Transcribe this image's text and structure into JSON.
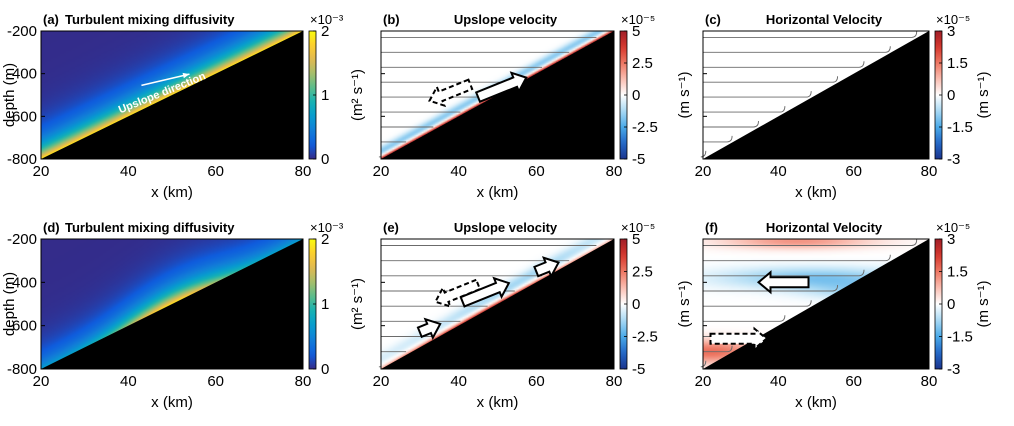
{
  "panels": [
    {
      "id": "a",
      "label": "(a)",
      "title": "Turbulent mixing diffusivity",
      "field": "kappa",
      "xlabel": "x (km)",
      "ylabel": "depth (m)",
      "xticks": [
        "20",
        "40",
        "60",
        "80"
      ],
      "yticks": [
        "-200",
        "-400",
        "-600",
        "-800"
      ],
      "show_ytick_labels": true,
      "colorbar": {
        "exponent": "×10⁻³",
        "ticks": [
          "2",
          "1",
          "0"
        ],
        "label": "(m² s⁻¹)",
        "colormap": "parula",
        "range": [
          0,
          0.002
        ]
      },
      "annotation": {
        "text": "Upslope direction"
      },
      "arrows": []
    },
    {
      "id": "b",
      "label": "(b)",
      "title": "Upslope velocity",
      "field": "upslope",
      "xlabel": "x (km)",
      "xticks": [
        "20",
        "40",
        "60",
        "80"
      ],
      "show_ytick_labels": false,
      "colorbar": {
        "exponent": "×10⁻⁵",
        "ticks": [
          "5",
          "2.5",
          "0",
          "-2.5",
          "-5"
        ],
        "label": "",
        "colormap": "diverging",
        "range": [
          -5e-05,
          5e-05
        ]
      },
      "arrows": [
        {
          "style": "dashed",
          "direction": "downslope"
        },
        {
          "style": "solid",
          "direction": "upslope"
        }
      ]
    },
    {
      "id": "c",
      "label": "(c)",
      "title": "Horizontal Velocity",
      "field": "horizontal",
      "xlabel": "x (km)",
      "ylabel": "(m s⁻¹)",
      "xticks": [
        "20",
        "40",
        "60",
        "80"
      ],
      "show_ytick_labels": false,
      "colorbar": {
        "exponent": "×10⁻⁵",
        "ticks": [
          "3",
          "1.5",
          "0",
          "-1.5",
          "-3"
        ],
        "label": "(m s⁻¹)",
        "colormap": "diverging",
        "range": [
          -3e-05,
          3e-05
        ]
      },
      "arrows": []
    },
    {
      "id": "d",
      "label": "(d)",
      "title": "Turbulent mixing diffusivity",
      "field": "kappa2",
      "xlabel": "x (km)",
      "ylabel": "depth (m)",
      "xticks": [
        "20",
        "40",
        "60",
        "80"
      ],
      "yticks": [
        "-200",
        "-400",
        "-600",
        "-800"
      ],
      "show_ytick_labels": true,
      "colorbar": {
        "exponent": "×10⁻³",
        "ticks": [
          "2",
          "1",
          "0"
        ],
        "label": "(m² s⁻¹)",
        "colormap": "parula",
        "range": [
          0,
          0.002
        ]
      },
      "arrows": []
    },
    {
      "id": "e",
      "label": "(e)",
      "title": "Upslope velocity",
      "field": "upslope2",
      "xlabel": "x (km)",
      "xticks": [
        "20",
        "40",
        "60",
        "80"
      ],
      "show_ytick_labels": false,
      "colorbar": {
        "exponent": "×10⁻⁵",
        "ticks": [
          "5",
          "2.5",
          "0",
          "-2.5",
          "-5"
        ],
        "label": "",
        "colormap": "diverging",
        "range": [
          -5e-05,
          5e-05
        ]
      },
      "arrows": [
        {
          "style": "dashed",
          "direction": "downslope"
        },
        {
          "style": "solid",
          "direction": "upslope"
        },
        {
          "style": "solid",
          "direction": "upslope"
        },
        {
          "style": "solid",
          "direction": "upslope"
        }
      ]
    },
    {
      "id": "f",
      "label": "(f)",
      "title": "Horizontal Velocity",
      "field": "horizontal2",
      "xlabel": "x (km)",
      "ylabel": "(m s⁻¹)",
      "xticks": [
        "20",
        "40",
        "60",
        "80"
      ],
      "show_ytick_labels": false,
      "colorbar": {
        "exponent": "×10⁻⁵",
        "ticks": [
          "3",
          "1.5",
          "0",
          "-1.5",
          "-3"
        ],
        "label": "(m s⁻¹)",
        "colormap": "diverging",
        "range": [
          -3e-05,
          3e-05
        ]
      },
      "arrows": [
        {
          "style": "solid",
          "direction": "left"
        },
        {
          "style": "dashed",
          "direction": "right"
        }
      ]
    }
  ],
  "chart_data": [
    {
      "type": "heatmap",
      "title": "(a) Turbulent mixing diffusivity",
      "xlabel": "x (km)",
      "ylabel": "depth (m)",
      "xlim": [
        20,
        80
      ],
      "ylim": [
        -800,
        -200
      ],
      "clim": [
        0,
        0.002
      ],
      "colorbar_label": "(m² s⁻¹)",
      "annotation": "Upslope direction"
    },
    {
      "type": "heatmap",
      "title": "(b) Upslope velocity",
      "xlabel": "x (km)",
      "xlim": [
        20,
        80
      ],
      "ylim": [
        -800,
        -200
      ],
      "clim": [
        -5e-05,
        5e-05
      ]
    },
    {
      "type": "heatmap",
      "title": "(c) Horizontal Velocity",
      "xlabel": "x (km)",
      "ylabel": "(m s⁻¹)",
      "xlim": [
        20,
        80
      ],
      "ylim": [
        -800,
        -200
      ],
      "clim": [
        -3e-05,
        3e-05
      ],
      "colorbar_label": "(m s⁻¹)"
    },
    {
      "type": "heatmap",
      "title": "(d) Turbulent mixing diffusivity",
      "xlabel": "x (km)",
      "ylabel": "depth (m)",
      "xlim": [
        20,
        80
      ],
      "ylim": [
        -800,
        -200
      ],
      "clim": [
        0,
        0.002
      ],
      "colorbar_label": "(m² s⁻¹)"
    },
    {
      "type": "heatmap",
      "title": "(e) Upslope velocity",
      "xlabel": "x (km)",
      "xlim": [
        20,
        80
      ],
      "ylim": [
        -800,
        -200
      ],
      "clim": [
        -5e-05,
        5e-05
      ]
    },
    {
      "type": "heatmap",
      "title": "(f) Horizontal Velocity",
      "xlabel": "x (km)",
      "ylabel": "(m s⁻¹)",
      "xlim": [
        20,
        80
      ],
      "ylim": [
        -800,
        -200
      ],
      "clim": [
        -3e-05,
        3e-05
      ],
      "colorbar_label": "(m s⁻¹)"
    }
  ]
}
